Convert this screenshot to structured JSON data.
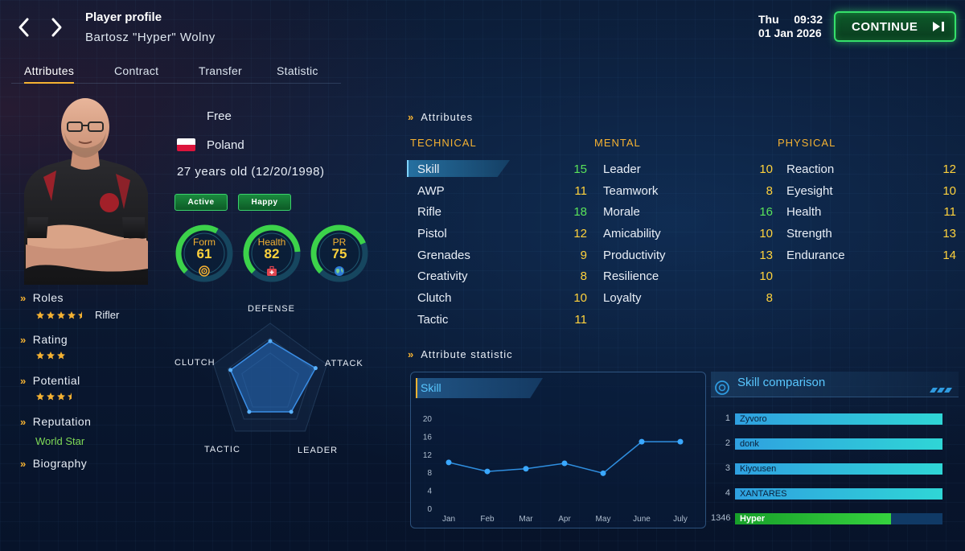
{
  "header": {
    "title": "Player profile",
    "player_name": "Bartosz \"Hyper\" Wolny",
    "day": "Thu",
    "time": "09:32",
    "date": "01 Jan 2026",
    "continue_label": "CONTINUE"
  },
  "tabs": [
    {
      "label": "Attributes",
      "active": true
    },
    {
      "label": "Contract",
      "active": false
    },
    {
      "label": "Transfer",
      "active": false
    },
    {
      "label": "Statistic",
      "active": false
    }
  ],
  "profile": {
    "status": "Free",
    "country": "Poland",
    "age": "27 years old (12/20/1998)",
    "badges": [
      "Active",
      "Happy"
    ],
    "roles_label": "Roles",
    "roles_stars": 4.5,
    "role": "Rifler",
    "rating_label": "Rating",
    "rating_stars": 3,
    "potential_label": "Potential",
    "potential_stars": 3.5,
    "reputation_label": "Reputation",
    "reputation": "World Star",
    "biography_label": "Biography"
  },
  "gauges": [
    {
      "label": "Form",
      "value": "61",
      "fill": 0.61,
      "icon": "target-icon"
    },
    {
      "label": "Health",
      "value": "82",
      "fill": 0.82,
      "icon": "medkit-icon"
    },
    {
      "label": "PR",
      "value": "75",
      "fill": 0.75,
      "icon": "globe-icon"
    }
  ],
  "radar": {
    "labels": [
      "DEFENSE",
      "ATTACK",
      "LEADER",
      "TACTIC",
      "CLUTCH"
    ],
    "values": [
      0.7,
      0.8,
      0.6,
      0.6,
      0.7
    ]
  },
  "attributes": {
    "title": "Attributes",
    "technical_label": "TECHNICAL",
    "mental_label": "MENTAL",
    "physical_label": "PHYSICAL",
    "technical": [
      {
        "name": "Skill",
        "value": "15",
        "color": "green"
      },
      {
        "name": "AWP",
        "value": "11",
        "color": "yellow"
      },
      {
        "name": "Rifle",
        "value": "18",
        "color": "green"
      },
      {
        "name": "Pistol",
        "value": "12",
        "color": "yellow"
      },
      {
        "name": "Grenades",
        "value": "9",
        "color": "yellow"
      },
      {
        "name": "Creativity",
        "value": "8",
        "color": "yellow"
      },
      {
        "name": "Clutch",
        "value": "10",
        "color": "yellow"
      },
      {
        "name": "Tactic",
        "value": "11",
        "color": "yellow"
      }
    ],
    "mental": [
      {
        "name": "Leader",
        "value": "10",
        "color": "yellow"
      },
      {
        "name": "Teamwork",
        "value": "8",
        "color": "yellow"
      },
      {
        "name": "Morale",
        "value": "16",
        "color": "green"
      },
      {
        "name": "Amicability",
        "value": "10",
        "color": "yellow"
      },
      {
        "name": "Productivity",
        "value": "13",
        "color": "yellow"
      },
      {
        "name": "Resilience",
        "value": "10",
        "color": "yellow"
      },
      {
        "name": "Loyalty",
        "value": "8",
        "color": "yellow"
      }
    ],
    "physical": [
      {
        "name": "Reaction",
        "value": "12",
        "color": "yellow"
      },
      {
        "name": "Eyesight",
        "value": "10",
        "color": "yellow"
      },
      {
        "name": "Health",
        "value": "11",
        "color": "yellow"
      },
      {
        "name": "Strength",
        "value": "13",
        "color": "yellow"
      },
      {
        "name": "Endurance",
        "value": "14",
        "color": "yellow"
      }
    ]
  },
  "attribute_statistic": {
    "title": "Attribute statistic",
    "chart_tab": "Skill",
    "comparison_title": "Skill comparison",
    "comparison": [
      {
        "rank": "1",
        "name": "Zyvoro",
        "value": 1.0,
        "highlight": false
      },
      {
        "rank": "2",
        "name": "donk",
        "value": 1.0,
        "highlight": false
      },
      {
        "rank": "3",
        "name": "Kiyousen",
        "value": 1.0,
        "highlight": false
      },
      {
        "rank": "4",
        "name": "XANTARES",
        "value": 1.0,
        "highlight": false
      },
      {
        "rank": "1346",
        "name": "Hyper",
        "value": 0.75,
        "highlight": true
      }
    ]
  },
  "chart_data": {
    "type": "line",
    "title": "Skill",
    "categories": [
      "Jan",
      "Feb",
      "Mar",
      "Apr",
      "May",
      "June",
      "July"
    ],
    "values": [
      10.2,
      8.2,
      8.8,
      10.0,
      7.8,
      14.8,
      14.8
    ],
    "ylim": [
      0,
      20
    ],
    "yticks": [
      "20",
      "16",
      "12",
      "8",
      "4",
      "0"
    ],
    "grid": false
  },
  "colors": {
    "accent": "#f5b232",
    "green": "#59e35a",
    "yellow": "#ffd23c",
    "cyan": "#59c7ff",
    "continue_border": "#35e06a"
  }
}
